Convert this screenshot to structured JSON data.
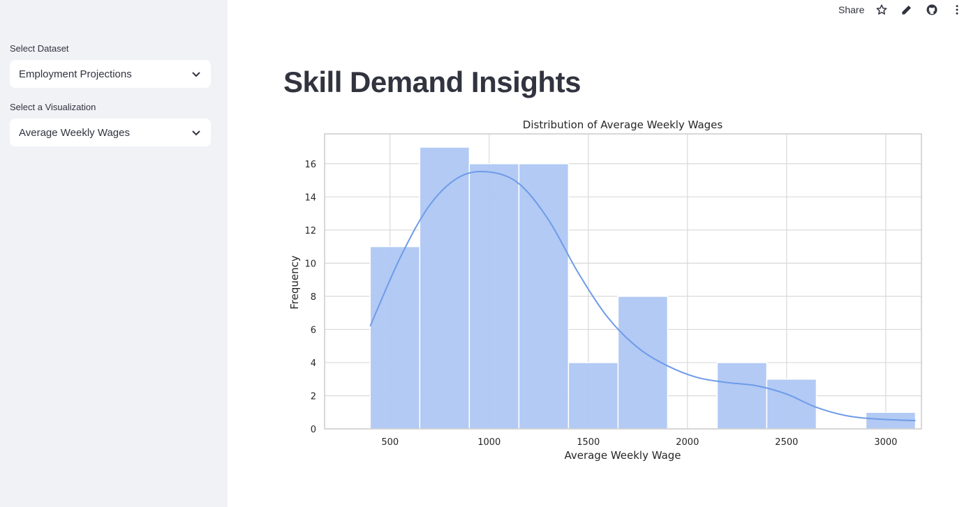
{
  "sidebar": {
    "dataset_label": "Select Dataset",
    "dataset_value": "Employment Projections",
    "viz_label": "Select a Visualization",
    "viz_value": "Average Weekly Wages"
  },
  "toolbar": {
    "share_label": "Share",
    "icons": [
      "star-icon",
      "edit-icon",
      "github-icon",
      "more-vert-icon"
    ]
  },
  "main": {
    "title": "Skill Demand Insights"
  },
  "colors": {
    "bar": "#aec7f3",
    "kde": "#6f9be8",
    "grid": "#d9d9d9",
    "sidebar_bg": "#f0f2f6"
  },
  "chart_data": {
    "type": "bar",
    "title": "Distribution of Average Weekly Wages",
    "xlabel": "Average Weekly Wage",
    "ylabel": "Frequency",
    "xlim": [
      170,
      3180
    ],
    "ylim": [
      0,
      17.8
    ],
    "xticks": [
      500,
      1000,
      1500,
      2000,
      2500,
      3000
    ],
    "yticks": [
      0,
      2,
      4,
      6,
      8,
      10,
      12,
      14,
      16
    ],
    "grid": true,
    "bins": [
      {
        "x0": 400,
        "x1": 650,
        "value": 11
      },
      {
        "x0": 650,
        "x1": 900,
        "value": 17
      },
      {
        "x0": 900,
        "x1": 1150,
        "value": 16
      },
      {
        "x0": 1150,
        "x1": 1400,
        "value": 16
      },
      {
        "x0": 1400,
        "x1": 1650,
        "value": 4
      },
      {
        "x0": 1650,
        "x1": 1900,
        "value": 8
      },
      {
        "x0": 1900,
        "x1": 2150,
        "value": 0
      },
      {
        "x0": 2150,
        "x1": 2400,
        "value": 4
      },
      {
        "x0": 2400,
        "x1": 2650,
        "value": 3
      },
      {
        "x0": 2650,
        "x1": 2900,
        "value": 0
      },
      {
        "x0": 2900,
        "x1": 3150,
        "value": 1
      }
    ],
    "kde": {
      "x": [
        400,
        550,
        700,
        850,
        1000,
        1150,
        1300,
        1450,
        1600,
        1750,
        1900,
        2050,
        2200,
        2350,
        2500,
        2650,
        2800,
        2950,
        3150
      ],
      "y": [
        6.2,
        10.3,
        13.5,
        15.2,
        15.5,
        14.8,
        12.6,
        9.4,
        6.7,
        4.9,
        3.8,
        3.1,
        2.8,
        2.6,
        2.1,
        1.3,
        0.8,
        0.6,
        0.5
      ]
    }
  }
}
